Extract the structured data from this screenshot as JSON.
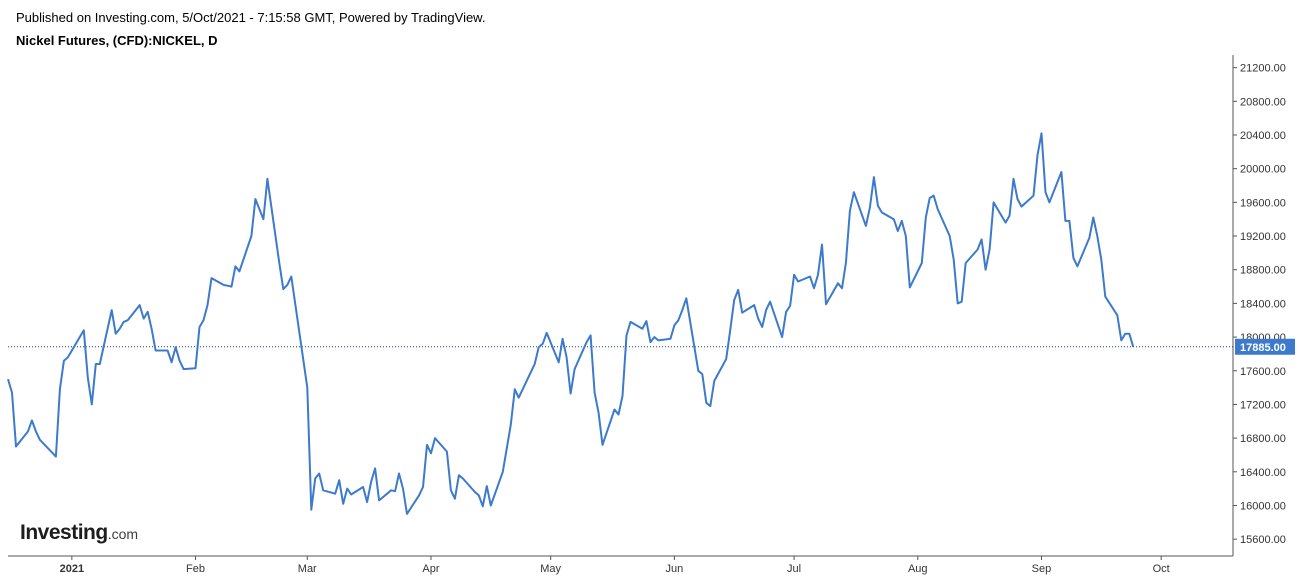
{
  "header": {
    "published_text": "Published on Investing.com, 5/Oct/2021 - 7:15:58 GMT, Powered by TradingView.",
    "symbol_title": "Nickel Futures, (CFD):NICKEL, D"
  },
  "logo": {
    "main": "Investing",
    "suffix": ".com"
  },
  "colors": {
    "line": "#3d7acb",
    "price_label_bg": "#3d7acb",
    "dotted_line": "#1f3f7a",
    "axis": "#555555"
  },
  "chart_data": {
    "type": "line",
    "title": "Nickel Futures, (CFD):NICKEL, D",
    "xlabel": "",
    "ylabel": "",
    "ylim": [
      15400,
      21350
    ],
    "y_ticks": [
      "15600.00",
      "16000.00",
      "16400.00",
      "16800.00",
      "17200.00",
      "17600.00",
      "18000.00",
      "18400.00",
      "18800.00",
      "19200.00",
      "19600.00",
      "20000.00",
      "20400.00",
      "20800.00",
      "21200.00"
    ],
    "x_ticks": [
      {
        "label": "2021",
        "date": "2021-01-01",
        "bold": true
      },
      {
        "label": "Feb",
        "date": "2021-02-01",
        "bold": false
      },
      {
        "label": "Mar",
        "date": "2021-03-01",
        "bold": false
      },
      {
        "label": "Apr",
        "date": "2021-04-01",
        "bold": false
      },
      {
        "label": "May",
        "date": "2021-05-01",
        "bold": false
      },
      {
        "label": "Jun",
        "date": "2021-06-01",
        "bold": false
      },
      {
        "label": "Jul",
        "date": "2021-07-01",
        "bold": false
      },
      {
        "label": "Aug",
        "date": "2021-08-01",
        "bold": false
      },
      {
        "label": "Sep",
        "date": "2021-09-01",
        "bold": false
      },
      {
        "label": "Oct",
        "date": "2021-10-01",
        "bold": false
      }
    ],
    "x_range": [
      "2020-12-16",
      "2021-10-19"
    ],
    "last_price_label": "17885.00",
    "last_price": 17885,
    "series": [
      {
        "points": [
          [
            "2020-12-16",
            17500
          ],
          [
            "2020-12-17",
            17340
          ],
          [
            "2020-12-18",
            16700
          ],
          [
            "2020-12-21",
            16880
          ],
          [
            "2020-12-22",
            17010
          ],
          [
            "2020-12-23",
            16880
          ],
          [
            "2020-12-24",
            16780
          ],
          [
            "2020-12-28",
            16580
          ],
          [
            "2020-12-29",
            17380
          ],
          [
            "2020-12-30",
            17720
          ],
          [
            "2020-12-31",
            17760
          ],
          [
            "2021-01-04",
            18080
          ],
          [
            "2021-01-05",
            17520
          ],
          [
            "2021-01-06",
            17200
          ],
          [
            "2021-01-07",
            17680
          ],
          [
            "2021-01-08",
            17680
          ],
          [
            "2021-01-11",
            18320
          ],
          [
            "2021-01-12",
            18040
          ],
          [
            "2021-01-13",
            18100
          ],
          [
            "2021-01-14",
            18180
          ],
          [
            "2021-01-15",
            18200
          ],
          [
            "2021-01-18",
            18380
          ],
          [
            "2021-01-19",
            18220
          ],
          [
            "2021-01-20",
            18300
          ],
          [
            "2021-01-21",
            18100
          ],
          [
            "2021-01-22",
            17840
          ],
          [
            "2021-01-25",
            17840
          ],
          [
            "2021-01-26",
            17700
          ],
          [
            "2021-01-27",
            17880
          ],
          [
            "2021-01-28",
            17720
          ],
          [
            "2021-01-29",
            17620
          ],
          [
            "2021-02-01",
            17630
          ],
          [
            "2021-02-02",
            18120
          ],
          [
            "2021-02-03",
            18200
          ],
          [
            "2021-02-04",
            18380
          ],
          [
            "2021-02-05",
            18700
          ],
          [
            "2021-02-08",
            18620
          ],
          [
            "2021-02-09",
            18610
          ],
          [
            "2021-02-10",
            18600
          ],
          [
            "2021-02-11",
            18840
          ],
          [
            "2021-02-12",
            18780
          ],
          [
            "2021-02-15",
            19200
          ],
          [
            "2021-02-16",
            19640
          ],
          [
            "2021-02-17",
            19520
          ],
          [
            "2021-02-18",
            19400
          ],
          [
            "2021-02-19",
            19880
          ],
          [
            "2021-02-22",
            18880
          ],
          [
            "2021-02-23",
            18570
          ],
          [
            "2021-02-24",
            18620
          ],
          [
            "2021-02-25",
            18720
          ],
          [
            "2021-03-01",
            17400
          ],
          [
            "2021-03-02",
            15950
          ],
          [
            "2021-03-03",
            16320
          ],
          [
            "2021-03-04",
            16380
          ],
          [
            "2021-03-05",
            16180
          ],
          [
            "2021-03-08",
            16140
          ],
          [
            "2021-03-09",
            16300
          ],
          [
            "2021-03-10",
            16020
          ],
          [
            "2021-03-11",
            16200
          ],
          [
            "2021-03-12",
            16130
          ],
          [
            "2021-03-15",
            16220
          ],
          [
            "2021-03-16",
            16040
          ],
          [
            "2021-03-17",
            16280
          ],
          [
            "2021-03-18",
            16440
          ],
          [
            "2021-03-19",
            16060
          ],
          [
            "2021-03-22",
            16180
          ],
          [
            "2021-03-23",
            16170
          ],
          [
            "2021-03-24",
            16380
          ],
          [
            "2021-03-25",
            16200
          ],
          [
            "2021-03-26",
            15900
          ],
          [
            "2021-03-29",
            16120
          ],
          [
            "2021-03-30",
            16220
          ],
          [
            "2021-03-31",
            16720
          ],
          [
            "2021-04-01",
            16620
          ],
          [
            "2021-04-02",
            16800
          ],
          [
            "2021-04-05",
            16640
          ],
          [
            "2021-04-06",
            16180
          ],
          [
            "2021-04-07",
            16080
          ],
          [
            "2021-04-08",
            16360
          ],
          [
            "2021-04-09",
            16320
          ],
          [
            "2021-04-12",
            16160
          ],
          [
            "2021-04-13",
            16120
          ],
          [
            "2021-04-14",
            15990
          ],
          [
            "2021-04-15",
            16230
          ],
          [
            "2021-04-16",
            16000
          ],
          [
            "2021-04-19",
            16400
          ],
          [
            "2021-04-20",
            16680
          ],
          [
            "2021-04-21",
            16960
          ],
          [
            "2021-04-22",
            17380
          ],
          [
            "2021-04-23",
            17280
          ],
          [
            "2021-04-26",
            17580
          ],
          [
            "2021-04-27",
            17680
          ],
          [
            "2021-04-28",
            17880
          ],
          [
            "2021-04-29",
            17920
          ],
          [
            "2021-04-30",
            18050
          ],
          [
            "2021-05-03",
            17700
          ],
          [
            "2021-05-04",
            17980
          ],
          [
            "2021-05-05",
            17760
          ],
          [
            "2021-05-06",
            17330
          ],
          [
            "2021-05-07",
            17620
          ],
          [
            "2021-05-10",
            17940
          ],
          [
            "2021-05-11",
            18020
          ],
          [
            "2021-05-12",
            17340
          ],
          [
            "2021-05-13",
            17100
          ],
          [
            "2021-05-14",
            16720
          ],
          [
            "2021-05-17",
            17140
          ],
          [
            "2021-05-18",
            17080
          ],
          [
            "2021-05-19",
            17300
          ],
          [
            "2021-05-20",
            18020
          ],
          [
            "2021-05-21",
            18180
          ],
          [
            "2021-05-24",
            18100
          ],
          [
            "2021-05-25",
            18190
          ],
          [
            "2021-05-26",
            17940
          ],
          [
            "2021-05-27",
            18000
          ],
          [
            "2021-05-28",
            17960
          ],
          [
            "2021-05-31",
            17980
          ],
          [
            "2021-06-01",
            18140
          ],
          [
            "2021-06-02",
            18200
          ],
          [
            "2021-06-03",
            18320
          ],
          [
            "2021-06-04",
            18460
          ],
          [
            "2021-06-07",
            17600
          ],
          [
            "2021-06-08",
            17560
          ],
          [
            "2021-06-09",
            17220
          ],
          [
            "2021-06-10",
            17180
          ],
          [
            "2021-06-11",
            17480
          ],
          [
            "2021-06-14",
            17740
          ],
          [
            "2021-06-15",
            18080
          ],
          [
            "2021-06-16",
            18440
          ],
          [
            "2021-06-17",
            18560
          ],
          [
            "2021-06-18",
            18290
          ],
          [
            "2021-06-21",
            18380
          ],
          [
            "2021-06-22",
            18220
          ],
          [
            "2021-06-23",
            18120
          ],
          [
            "2021-06-24",
            18320
          ],
          [
            "2021-06-25",
            18420
          ],
          [
            "2021-06-28",
            18000
          ],
          [
            "2021-06-29",
            18300
          ],
          [
            "2021-06-30",
            18370
          ],
          [
            "2021-07-01",
            18740
          ],
          [
            "2021-07-02",
            18660
          ],
          [
            "2021-07-05",
            18720
          ],
          [
            "2021-07-06",
            18580
          ],
          [
            "2021-07-07",
            18740
          ],
          [
            "2021-07-08",
            19100
          ],
          [
            "2021-07-09",
            18390
          ],
          [
            "2021-07-12",
            18640
          ],
          [
            "2021-07-13",
            18580
          ],
          [
            "2021-07-14",
            18880
          ],
          [
            "2021-07-15",
            19500
          ],
          [
            "2021-07-16",
            19720
          ],
          [
            "2021-07-19",
            19320
          ],
          [
            "2021-07-20",
            19540
          ],
          [
            "2021-07-21",
            19900
          ],
          [
            "2021-07-22",
            19560
          ],
          [
            "2021-07-23",
            19480
          ],
          [
            "2021-07-26",
            19400
          ],
          [
            "2021-07-27",
            19260
          ],
          [
            "2021-07-28",
            19380
          ],
          [
            "2021-07-29",
            19200
          ],
          [
            "2021-07-30",
            18590
          ],
          [
            "2021-08-02",
            18880
          ],
          [
            "2021-08-03",
            19420
          ],
          [
            "2021-08-04",
            19650
          ],
          [
            "2021-08-05",
            19680
          ],
          [
            "2021-08-06",
            19520
          ],
          [
            "2021-08-09",
            19200
          ],
          [
            "2021-08-10",
            18920
          ],
          [
            "2021-08-11",
            18400
          ],
          [
            "2021-08-12",
            18420
          ],
          [
            "2021-08-13",
            18880
          ],
          [
            "2021-08-16",
            19040
          ],
          [
            "2021-08-17",
            19160
          ],
          [
            "2021-08-18",
            18800
          ],
          [
            "2021-08-19",
            19040
          ],
          [
            "2021-08-20",
            19600
          ],
          [
            "2021-08-23",
            19360
          ],
          [
            "2021-08-24",
            19440
          ],
          [
            "2021-08-25",
            19880
          ],
          [
            "2021-08-26",
            19640
          ],
          [
            "2021-08-27",
            19550
          ],
          [
            "2021-08-30",
            19680
          ],
          [
            "2021-08-31",
            20160
          ],
          [
            "2021-09-01",
            20420
          ],
          [
            "2021-09-02",
            19720
          ],
          [
            "2021-09-03",
            19600
          ],
          [
            "2021-09-06",
            19960
          ],
          [
            "2021-09-07",
            19380
          ],
          [
            "2021-09-08",
            19380
          ],
          [
            "2021-09-09",
            18940
          ],
          [
            "2021-09-10",
            18840
          ],
          [
            "2021-09-13",
            19180
          ],
          [
            "2021-09-14",
            19420
          ],
          [
            "2021-09-15",
            19200
          ],
          [
            "2021-09-16",
            18920
          ],
          [
            "2021-09-17",
            18480
          ],
          [
            "2021-09-20",
            18260
          ],
          [
            "2021-09-21",
            17960
          ],
          [
            "2021-09-22",
            18040
          ],
          [
            "2021-09-23",
            18040
          ],
          [
            "2021-09-24",
            17885
          ]
        ]
      }
    ]
  }
}
